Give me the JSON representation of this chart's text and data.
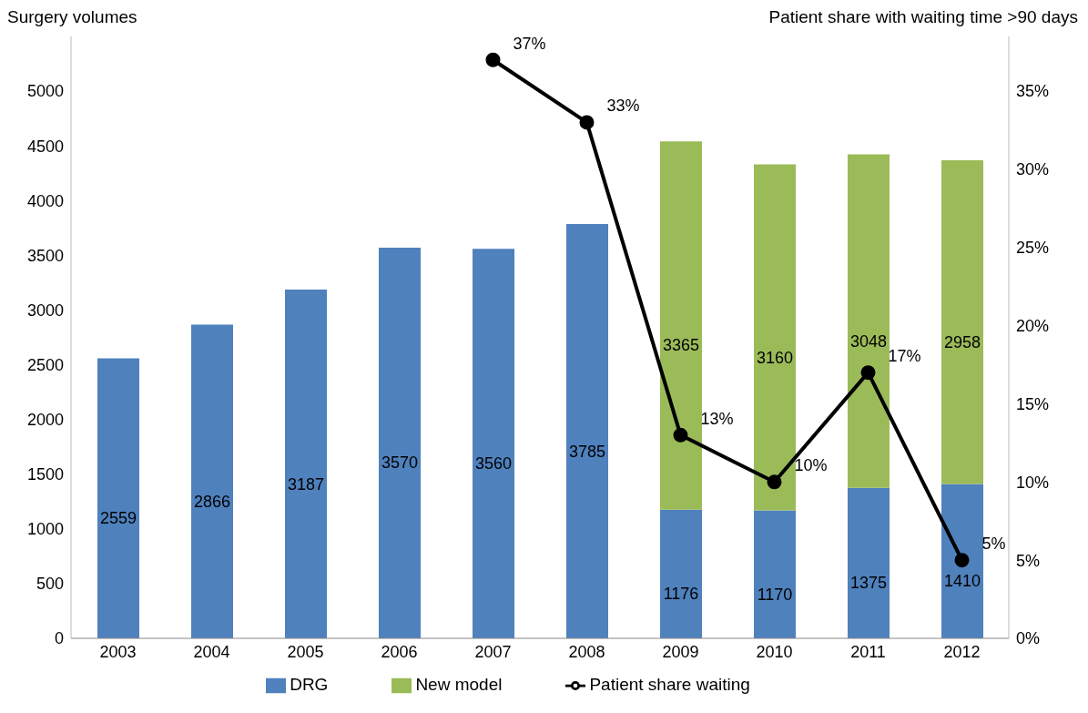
{
  "chart_data": {
    "type": "bar",
    "stacked": true,
    "ylabel": "Surgery volumes",
    "y2label": "Patient share with waiting time >90 days",
    "categories": [
      "2003",
      "2004",
      "2005",
      "2006",
      "2007",
      "2008",
      "2009",
      "2010",
      "2011",
      "2012"
    ],
    "series": [
      {
        "name": "DRG",
        "color": "#4f81bd",
        "values": [
          2559,
          2866,
          3187,
          3570,
          3560,
          3785,
          1176,
          1170,
          1375,
          1410
        ],
        "value_labels": [
          "2559",
          "2866",
          "3187",
          "3570",
          "3560",
          "3785",
          "1176",
          "1170",
          "1375",
          "1410"
        ]
      },
      {
        "name": "New model",
        "color": "#9bbb59",
        "values": [
          null,
          null,
          null,
          null,
          null,
          null,
          3365,
          3160,
          3048,
          2958
        ],
        "value_labels": [
          null,
          null,
          null,
          null,
          null,
          null,
          "3365",
          "3160",
          "3048",
          "2958"
        ]
      },
      {
        "name": "Patient share waiting",
        "type": "line",
        "axis": "y2",
        "color": "#000000",
        "marker": "circle",
        "line_style": "solid",
        "values": [
          null,
          null,
          null,
          null,
          37,
          33,
          13,
          10,
          17,
          5
        ],
        "value_labels": [
          null,
          null,
          null,
          null,
          "37%",
          "33%",
          "13%",
          "10%",
          "17%",
          "5%"
        ]
      }
    ],
    "ylim": [
      0,
      5500
    ],
    "yticks": [
      0,
      500,
      1000,
      1500,
      2000,
      2500,
      3000,
      3500,
      4000,
      4500,
      5000
    ],
    "y2lim": [
      0,
      38.5
    ],
    "y2ticks": [
      {
        "value": 0,
        "label": "0%"
      },
      {
        "value": 5,
        "label": "5%"
      },
      {
        "value": 10,
        "label": "10%"
      },
      {
        "value": 15,
        "label": "15%"
      },
      {
        "value": 20,
        "label": "20%"
      },
      {
        "value": 25,
        "label": "25%"
      },
      {
        "value": 30,
        "label": "30%"
      },
      {
        "value": 35,
        "label": "35%"
      }
    ],
    "grid": false,
    "legend": "bottom"
  }
}
